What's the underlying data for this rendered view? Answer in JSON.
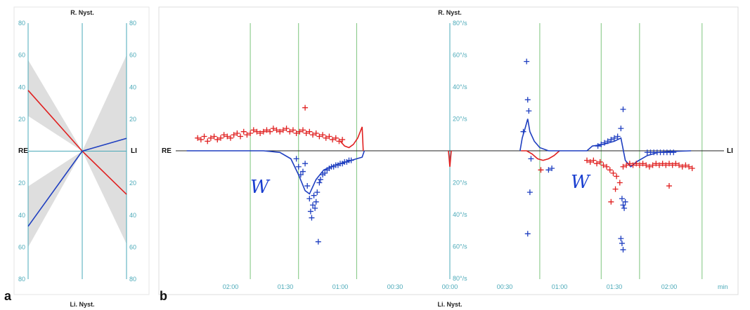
{
  "colors": {
    "red": "#e02020",
    "blue": "#1f3fc0",
    "axis_teal": "#4aa9b8",
    "vgrid_green": "#7cc47c",
    "band_gray": "#d0d0d0"
  },
  "panel_a": {
    "letter": "a",
    "top_label": "R. Nyst.",
    "bottom_label": "Li. Nyst.",
    "left_label": "RE",
    "right_label": "LI",
    "y_ticks_left": [
      "80",
      "60",
      "40",
      "20",
      "",
      "20",
      "40",
      "60",
      "80"
    ],
    "y_ticks_right": [
      "80",
      "60",
      "40",
      "20",
      "",
      "20",
      "40",
      "60",
      "80"
    ]
  },
  "panel_b": {
    "letter": "b",
    "top_label": "R. Nyst.",
    "bottom_label": "Li. Nyst.",
    "left_label": "RE",
    "right_label": "LI",
    "y_ticks": [
      "80°/s",
      "60°/s",
      "40°/s",
      "20°/s",
      "",
      "20°/s",
      "40°/s",
      "60°/s",
      "80°/s"
    ],
    "x_ticks": [
      "02:00",
      "01:30",
      "01:00",
      "00:30",
      "00:00",
      "00:30",
      "01:00",
      "01:30",
      "02:00"
    ],
    "x_unit": "min",
    "hand_marks": [
      "W",
      "W"
    ]
  },
  "chart_data": [
    {
      "type": "line",
      "title": "R. Nyst.",
      "xlabel": "",
      "ylabel": "",
      "ylim": [
        -80,
        80
      ],
      "x": [
        -1,
        0,
        1
      ],
      "series": [
        {
          "values": [
            38,
            0,
            -27
          ]
        },
        {
          "values": [
            -47,
            0,
            8
          ]
        }
      ],
      "bands": [
        {
          "upper": [
            57,
            0,
            0
          ],
          "lower": [
            22,
            0,
            -58
          ]
        },
        {
          "upper": [
            -22,
            0,
            60
          ],
          "lower": [
            -60,
            0,
            0
          ]
        }
      ],
      "grid": true
    },
    {
      "type": "scatter",
      "title": "R. Nyst.",
      "xlabel": "",
      "ylabel": "",
      "ylim": [
        -80,
        80
      ],
      "xlim": [
        -2.5,
        2.5
      ],
      "x_tick_values": [
        -2.0,
        -1.5,
        -1.0,
        -0.5,
        0,
        0.5,
        1.0,
        1.5,
        2.0
      ],
      "series": [
        {
          "name": "red-left",
          "points": [
            [
              -2.3,
              8
            ],
            [
              -2.27,
              7
            ],
            [
              -2.24,
              9
            ],
            [
              -2.21,
              6
            ],
            [
              -2.18,
              8
            ],
            [
              -2.15,
              9
            ],
            [
              -2.12,
              7
            ],
            [
              -2.09,
              8
            ],
            [
              -2.06,
              10
            ],
            [
              -2.03,
              9
            ],
            [
              -2.0,
              8
            ],
            [
              -1.97,
              10
            ],
            [
              -1.94,
              11
            ],
            [
              -1.91,
              9
            ],
            [
              -1.88,
              12
            ],
            [
              -1.85,
              10
            ],
            [
              -1.82,
              11
            ],
            [
              -1.79,
              13
            ],
            [
              -1.76,
              12
            ],
            [
              -1.73,
              11
            ],
            [
              -1.7,
              12
            ],
            [
              -1.67,
              13
            ],
            [
              -1.64,
              12
            ],
            [
              -1.61,
              14
            ],
            [
              -1.58,
              13
            ],
            [
              -1.55,
              12
            ],
            [
              -1.52,
              13
            ],
            [
              -1.49,
              14
            ],
            [
              -1.46,
              12
            ],
            [
              -1.43,
              13
            ],
            [
              -1.4,
              11
            ],
            [
              -1.37,
              12
            ],
            [
              -1.34,
              13
            ],
            [
              -1.31,
              11
            ],
            [
              -1.28,
              12
            ],
            [
              -1.25,
              10
            ],
            [
              -1.22,
              11
            ],
            [
              -1.19,
              9
            ],
            [
              -1.16,
              10
            ],
            [
              -1.13,
              8
            ],
            [
              -1.1,
              9
            ],
            [
              -1.07,
              7
            ],
            [
              -1.04,
              8
            ],
            [
              -1.01,
              6
            ],
            [
              -0.98,
              7
            ],
            [
              -1.32,
              27
            ]
          ]
        },
        {
          "name": "blue-left",
          "points": [
            [
              -1.4,
              -5
            ],
            [
              -1.38,
              -10
            ],
            [
              -1.36,
              -15
            ],
            [
              -1.34,
              -13
            ],
            [
              -1.32,
              -8
            ],
            [
              -1.3,
              -22
            ],
            [
              -1.28,
              -30
            ],
            [
              -1.27,
              -38
            ],
            [
              -1.26,
              -42
            ],
            [
              -1.25,
              -34
            ],
            [
              -1.24,
              -28
            ],
            [
              -1.23,
              -36
            ],
            [
              -1.22,
              -32
            ],
            [
              -1.21,
              -26
            ],
            [
              -1.2,
              -57
            ],
            [
              -1.19,
              -20
            ],
            [
              -1.18,
              -18
            ],
            [
              -1.16,
              -15
            ],
            [
              -1.14,
              -14
            ],
            [
              -1.12,
              -12
            ],
            [
              -1.1,
              -11
            ],
            [
              -1.08,
              -10
            ],
            [
              -1.06,
              -10
            ],
            [
              -1.04,
              -9
            ],
            [
              -1.02,
              -9
            ],
            [
              -1.0,
              -8
            ],
            [
              -0.98,
              -8
            ],
            [
              -0.96,
              -7
            ],
            [
              -0.94,
              -7
            ],
            [
              -0.92,
              -6
            ],
            [
              -0.9,
              -6
            ]
          ]
        },
        {
          "name": "blue-right",
          "points": [
            [
              0.67,
              12
            ],
            [
              0.7,
              56
            ],
            [
              0.71,
              32
            ],
            [
              0.72,
              25
            ],
            [
              0.73,
              -26
            ],
            [
              0.74,
              -5
            ],
            [
              0.71,
              -52
            ],
            [
              0.9,
              -12
            ],
            [
              0.93,
              -11
            ],
            [
              1.35,
              3
            ],
            [
              1.38,
              4
            ],
            [
              1.41,
              5
            ],
            [
              1.44,
              6
            ],
            [
              1.47,
              7
            ],
            [
              1.5,
              8
            ],
            [
              1.53,
              9
            ],
            [
              1.56,
              14
            ],
            [
              1.58,
              26
            ],
            [
              1.57,
              -30
            ],
            [
              1.58,
              -34
            ],
            [
              1.59,
              -36
            ],
            [
              1.56,
              -55
            ],
            [
              1.57,
              -58
            ],
            [
              1.58,
              -62
            ],
            [
              1.6,
              -32
            ],
            [
              1.8,
              -1
            ],
            [
              1.83,
              -1
            ],
            [
              1.86,
              -1
            ],
            [
              1.89,
              -1
            ],
            [
              1.92,
              -1
            ],
            [
              1.95,
              -1
            ],
            [
              1.98,
              -1
            ],
            [
              2.01,
              -1
            ],
            [
              2.04,
              -1
            ]
          ]
        },
        {
          "name": "red-right",
          "points": [
            [
              1.25,
              -6
            ],
            [
              1.28,
              -7
            ],
            [
              1.31,
              -6
            ],
            [
              1.34,
              -8
            ],
            [
              1.37,
              -7
            ],
            [
              1.4,
              -9
            ],
            [
              1.43,
              -10
            ],
            [
              1.46,
              -12
            ],
            [
              1.49,
              -14
            ],
            [
              1.52,
              -16
            ],
            [
              1.55,
              -20
            ],
            [
              1.51,
              -24
            ],
            [
              1.47,
              -32
            ],
            [
              1.58,
              -10
            ],
            [
              1.61,
              -9
            ],
            [
              1.64,
              -8
            ],
            [
              1.67,
              -9
            ],
            [
              1.7,
              -8
            ],
            [
              1.73,
              -9
            ],
            [
              1.76,
              -8
            ],
            [
              1.79,
              -9
            ],
            [
              1.82,
              -10
            ],
            [
              1.85,
              -9
            ],
            [
              1.88,
              -8
            ],
            [
              1.91,
              -9
            ],
            [
              1.94,
              -8
            ],
            [
              1.97,
              -9
            ],
            [
              2.0,
              -8
            ],
            [
              2.03,
              -9
            ],
            [
              2.06,
              -8
            ],
            [
              2.09,
              -9
            ],
            [
              2.12,
              -10
            ],
            [
              2.15,
              -9
            ],
            [
              2.18,
              -10
            ],
            [
              2.21,
              -11
            ],
            [
              2.0,
              -22
            ],
            [
              0.83,
              -12
            ]
          ]
        }
      ],
      "curves": [
        {
          "name": "red-curve",
          "points": [
            [
              -1.0,
              6
            ],
            [
              -0.96,
              3
            ],
            [
              -0.92,
              2
            ],
            [
              -0.88,
              4
            ],
            [
              -0.84,
              8
            ],
            [
              -0.8,
              15
            ],
            [
              -0.79,
              0
            ]
          ]
        },
        {
          "name": "blue-curve",
          "points": [
            [
              -2.4,
              0
            ],
            [
              -1.7,
              0
            ],
            [
              -1.55,
              -1
            ],
            [
              -1.45,
              -5
            ],
            [
              -1.38,
              -15
            ],
            [
              -1.32,
              -25
            ],
            [
              -1.28,
              -27
            ],
            [
              -1.22,
              -18
            ],
            [
              -1.15,
              -12
            ],
            [
              -1.05,
              -9
            ],
            [
              -0.95,
              -7
            ],
            [
              -0.85,
              -5
            ],
            [
              -0.8,
              -4
            ],
            [
              -0.78,
              0
            ]
          ]
        },
        {
          "name": "red-curve-right",
          "points": [
            [
              0.65,
              0
            ],
            [
              0.68,
              0
            ],
            [
              0.7,
              0
            ],
            [
              0.75,
              -2
            ],
            [
              0.8,
              -5
            ],
            [
              0.85,
              -6
            ],
            [
              0.9,
              -5
            ],
            [
              0.95,
              -3
            ],
            [
              1.0,
              0
            ]
          ]
        },
        {
          "name": "blue-curve-right",
          "points": [
            [
              0.64,
              0
            ],
            [
              0.66,
              8
            ],
            [
              0.69,
              15
            ],
            [
              0.71,
              20
            ],
            [
              0.73,
              12
            ],
            [
              0.77,
              6
            ],
            [
              0.82,
              2
            ],
            [
              0.9,
              0
            ],
            [
              1.25,
              0
            ],
            [
              1.3,
              3
            ],
            [
              1.4,
              4
            ],
            [
              1.5,
              6
            ],
            [
              1.56,
              8
            ],
            [
              1.6,
              -6
            ],
            [
              1.65,
              -10
            ],
            [
              1.7,
              -7
            ],
            [
              1.8,
              -3
            ],
            [
              1.9,
              -1
            ],
            [
              2.0,
              -0.5
            ],
            [
              2.2,
              0
            ]
          ]
        }
      ],
      "dip_at_zero": -10,
      "vertical_grid_x": [
        -1.82,
        -1.38,
        -0.85,
        0.82,
        1.38,
        1.73,
        2.3
      ],
      "grid": false
    }
  ]
}
